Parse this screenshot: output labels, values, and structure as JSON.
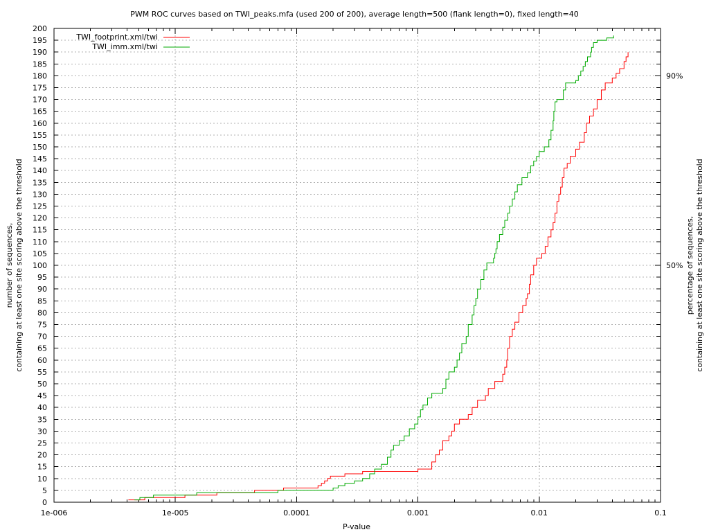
{
  "chart_data": {
    "type": "line",
    "title": "PWM ROC curves based on TWI_peaks.mfa (used 200 of 200), average length=500 (flank length=0), fixed length=40",
    "xlabel": "P-value",
    "ylabel_line1": "number of sequences,",
    "ylabel_line2": "containing at least one site scoring above the threshold",
    "y2label_line1": "percentage of sequences,",
    "y2label_line2": "containing at least one site scoring above the threshold",
    "x_scale": "log",
    "xlim": [
      1e-06,
      0.1
    ],
    "ylim": [
      0,
      200
    ],
    "grid": true,
    "legend_position": "top-left",
    "x_ticks": [
      {
        "value": 1e-06,
        "label": "1e-006"
      },
      {
        "value": 1e-05,
        "label": "1e-005"
      },
      {
        "value": 0.0001,
        "label": "0.0001"
      },
      {
        "value": 0.001,
        "label": "0.001"
      },
      {
        "value": 0.01,
        "label": "0.01"
      },
      {
        "value": 0.1,
        "label": "0.1"
      }
    ],
    "y_ticks": [
      0,
      5,
      10,
      15,
      20,
      25,
      30,
      35,
      40,
      45,
      50,
      55,
      60,
      65,
      70,
      75,
      80,
      85,
      90,
      95,
      100,
      105,
      110,
      115,
      120,
      125,
      130,
      135,
      140,
      145,
      150,
      155,
      160,
      165,
      170,
      175,
      180,
      185,
      190,
      195,
      200
    ],
    "y2_ticks": [
      {
        "value": 100,
        "label": "50%"
      },
      {
        "value": 180,
        "label": "90%"
      }
    ],
    "series": [
      {
        "name": "TWI_footprint.xml/twi",
        "color": "#ff0000",
        "points": [
          [
            4.1e-06,
            1
          ],
          [
            5.6e-06,
            1
          ],
          [
            5.6e-06,
            2
          ],
          [
            1.2e-05,
            2
          ],
          [
            1.2e-05,
            3
          ],
          [
            2.2e-05,
            3
          ],
          [
            2.2e-05,
            4
          ],
          [
            4.5e-05,
            4
          ],
          [
            4.5e-05,
            5
          ],
          [
            7.8e-05,
            5
          ],
          [
            7.8e-05,
            6
          ],
          [
            0.00014,
            6
          ],
          [
            0.00015,
            7
          ],
          [
            0.00016,
            8
          ],
          [
            0.00017,
            9
          ],
          [
            0.00018,
            10
          ],
          [
            0.00019,
            11
          ],
          [
            0.00025,
            12
          ],
          [
            0.0003,
            12
          ],
          [
            0.00035,
            13
          ],
          [
            0.0005,
            13
          ],
          [
            0.001,
            14
          ],
          [
            0.0012,
            14
          ],
          [
            0.0013,
            17
          ],
          [
            0.0014,
            20
          ],
          [
            0.0015,
            22
          ],
          [
            0.0016,
            26
          ],
          [
            0.0018,
            28
          ],
          [
            0.0019,
            30
          ],
          [
            0.002,
            33
          ],
          [
            0.0022,
            35
          ],
          [
            0.0026,
            37
          ],
          [
            0.0028,
            40
          ],
          [
            0.0031,
            43
          ],
          [
            0.0036,
            45
          ],
          [
            0.0038,
            48
          ],
          [
            0.0043,
            51
          ],
          [
            0.005,
            54
          ],
          [
            0.0052,
            57
          ],
          [
            0.0054,
            60
          ],
          [
            0.0055,
            65
          ],
          [
            0.0057,
            70
          ],
          [
            0.006,
            73
          ],
          [
            0.0063,
            76
          ],
          [
            0.0068,
            80
          ],
          [
            0.0073,
            83
          ],
          [
            0.0078,
            86
          ],
          [
            0.008,
            88
          ],
          [
            0.0083,
            92
          ],
          [
            0.0085,
            96
          ],
          [
            0.009,
            100
          ],
          [
            0.0095,
            103
          ],
          [
            0.0105,
            105
          ],
          [
            0.0112,
            108
          ],
          [
            0.0118,
            112
          ],
          [
            0.0125,
            115
          ],
          [
            0.013,
            118
          ],
          [
            0.0135,
            122
          ],
          [
            0.014,
            127
          ],
          [
            0.0145,
            130
          ],
          [
            0.015,
            133
          ],
          [
            0.0155,
            137
          ],
          [
            0.016,
            141
          ],
          [
            0.017,
            143
          ],
          [
            0.018,
            146
          ],
          [
            0.02,
            149
          ],
          [
            0.0215,
            152
          ],
          [
            0.0235,
            156
          ],
          [
            0.0245,
            160
          ],
          [
            0.026,
            163
          ],
          [
            0.028,
            166
          ],
          [
            0.03,
            170
          ],
          [
            0.0325,
            174
          ],
          [
            0.035,
            177
          ],
          [
            0.04,
            179
          ],
          [
            0.043,
            181
          ],
          [
            0.046,
            183
          ],
          [
            0.05,
            186
          ],
          [
            0.052,
            188
          ],
          [
            0.054,
            190
          ]
        ]
      },
      {
        "name": "TWI_imm.xml/twi",
        "color": "#00aa00",
        "points": [
          [
            4.6e-06,
            1
          ],
          [
            5.1e-06,
            2
          ],
          [
            6.2e-06,
            2
          ],
          [
            6.6e-06,
            3
          ],
          [
            1.1e-05,
            3
          ],
          [
            1.5e-05,
            3
          ],
          [
            1.5e-05,
            4
          ],
          [
            3e-05,
            4
          ],
          [
            6e-05,
            4
          ],
          [
            7e-05,
            5
          ],
          [
            0.0001,
            5
          ],
          [
            0.00018,
            5
          ],
          [
            0.0002,
            6
          ],
          [
            0.00022,
            7
          ],
          [
            0.00025,
            8
          ],
          [
            0.0003,
            9
          ],
          [
            0.00035,
            10
          ],
          [
            0.0004,
            12
          ],
          [
            0.00044,
            14
          ],
          [
            0.0005,
            16
          ],
          [
            0.00056,
            19
          ],
          [
            0.0006,
            22
          ],
          [
            0.00063,
            24
          ],
          [
            0.0007,
            26
          ],
          [
            0.00077,
            28
          ],
          [
            0.00085,
            31
          ],
          [
            0.00094,
            33
          ],
          [
            0.001,
            36
          ],
          [
            0.00105,
            39
          ],
          [
            0.0011,
            41
          ],
          [
            0.0012,
            44
          ],
          [
            0.0013,
            46
          ],
          [
            0.0016,
            48
          ],
          [
            0.0017,
            52
          ],
          [
            0.0018,
            55
          ],
          [
            0.002,
            57
          ],
          [
            0.0021,
            60
          ],
          [
            0.0022,
            63
          ],
          [
            0.0023,
            67
          ],
          [
            0.0025,
            70
          ],
          [
            0.0026,
            75
          ],
          [
            0.0028,
            79
          ],
          [
            0.0029,
            83
          ],
          [
            0.003,
            86
          ],
          [
            0.0031,
            90
          ],
          [
            0.0033,
            94
          ],
          [
            0.0035,
            98
          ],
          [
            0.0037,
            101
          ],
          [
            0.0042,
            103
          ],
          [
            0.0043,
            105
          ],
          [
            0.0044,
            107
          ],
          [
            0.0045,
            110
          ],
          [
            0.0047,
            113
          ],
          [
            0.005,
            116
          ],
          [
            0.0052,
            119
          ],
          [
            0.0055,
            122
          ],
          [
            0.0057,
            125
          ],
          [
            0.006,
            128
          ],
          [
            0.0063,
            131
          ],
          [
            0.0066,
            134
          ],
          [
            0.0072,
            137
          ],
          [
            0.008,
            139
          ],
          [
            0.0085,
            142
          ],
          [
            0.009,
            144
          ],
          [
            0.0095,
            146
          ],
          [
            0.01,
            148
          ],
          [
            0.011,
            150
          ],
          [
            0.012,
            153
          ],
          [
            0.0125,
            157
          ],
          [
            0.013,
            161
          ],
          [
            0.0132,
            165
          ],
          [
            0.0135,
            169
          ],
          [
            0.014,
            170
          ],
          [
            0.0158,
            174
          ],
          [
            0.0165,
            177
          ],
          [
            0.02,
            178
          ],
          [
            0.021,
            180
          ],
          [
            0.022,
            182
          ],
          [
            0.023,
            184
          ],
          [
            0.024,
            186
          ],
          [
            0.025,
            188
          ],
          [
            0.0265,
            190
          ],
          [
            0.027,
            192
          ],
          [
            0.028,
            194
          ],
          [
            0.03,
            195
          ],
          [
            0.036,
            196
          ],
          [
            0.041,
            197
          ]
        ]
      }
    ]
  }
}
